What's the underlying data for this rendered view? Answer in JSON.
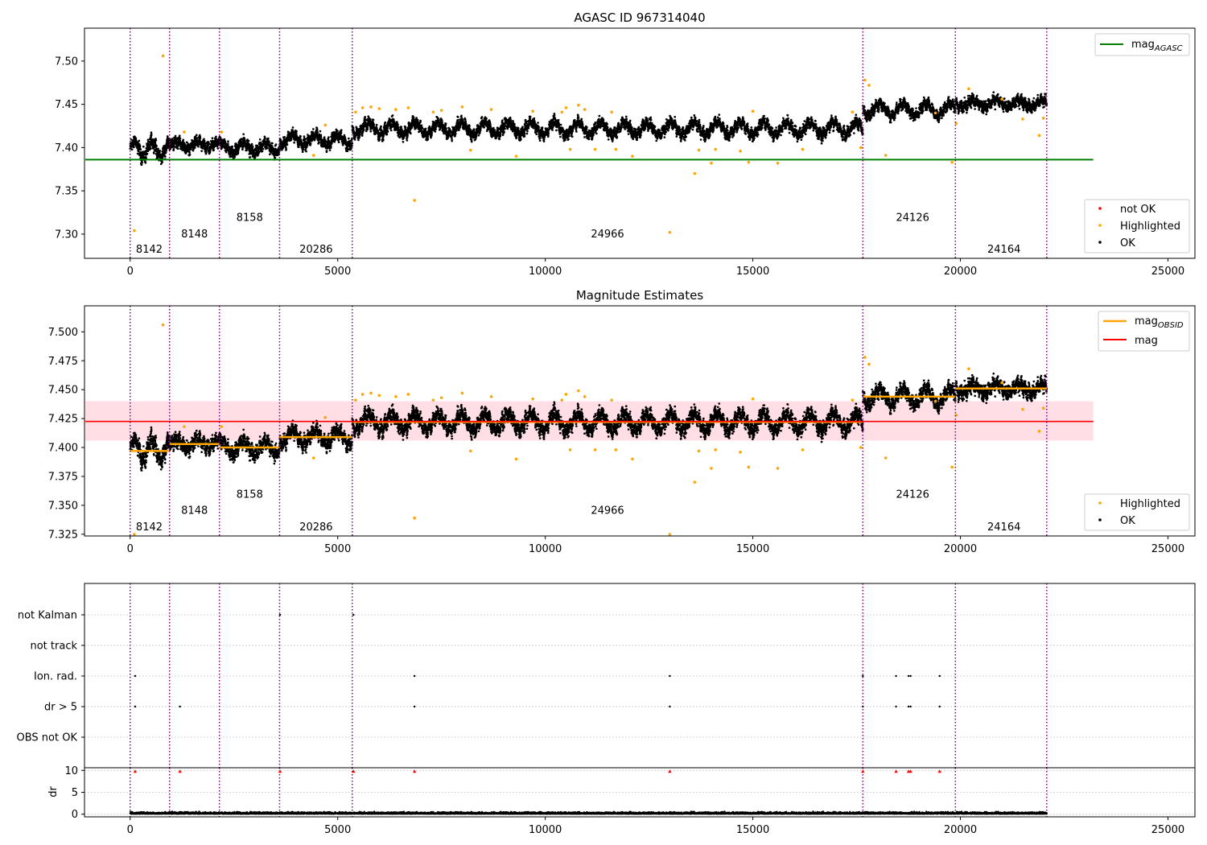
{
  "figure": {
    "x_ticks": [
      0,
      5000,
      10000,
      15000,
      20000,
      25000
    ],
    "x_range": [
      -1100,
      25650
    ],
    "obsid_boundaries": [
      0,
      950,
      2150,
      3600,
      5350,
      17650,
      19880,
      22080
    ],
    "colors": {
      "ok": "#000000",
      "highlighted": "#ffa500",
      "not_ok": "#ff0000",
      "boundary": "#800080",
      "agasc": "#008000",
      "mag": "#ff0000",
      "mag_band": "#ffc0cb",
      "mag_obsid": "#ffa500",
      "flag_grid": "#b0b0b0"
    }
  },
  "chart_data": [
    {
      "type": "scatter",
      "title": "AGASC ID 967314040",
      "y_range": [
        7.272,
        7.538
      ],
      "y_ticks": [
        "7.30",
        "7.35",
        "7.40",
        "7.45",
        "7.50"
      ],
      "obsid_labels": [
        {
          "text": "8142",
          "x": 460,
          "y": 7.283
        },
        {
          "text": "8148",
          "x": 1550,
          "y": 7.301
        },
        {
          "text": "8158",
          "x": 2880,
          "y": 7.32
        },
        {
          "text": "20286",
          "x": 4480,
          "y": 7.283
        },
        {
          "text": "24966",
          "x": 11500,
          "y": 7.301
        },
        {
          "text": "24126",
          "x": 18850,
          "y": 7.32
        },
        {
          "text": "24164",
          "x": 21050,
          "y": 7.283
        }
      ],
      "mag_agasc": 7.386,
      "line_end_x": 23200,
      "legend_top": [
        {
          "label": "mag",
          "sub": "AGASC"
        }
      ],
      "legend_bottom": [
        {
          "label": "not OK"
        },
        {
          "label": "Highlighted"
        },
        {
          "label": "OK"
        }
      ],
      "series": [
        {
          "name": "OK",
          "segments": [
            {
              "x0": 0,
              "x1": 950,
              "base": 7.398,
              "amp": 0.009,
              "period": 420,
              "noise": 0.006
            },
            {
              "x0": 950,
              "x1": 2150,
              "base": 7.403,
              "amp": 0.004,
              "period": 500,
              "noise": 0.005
            },
            {
              "x0": 2150,
              "x1": 3600,
              "base": 7.4,
              "amp": 0.006,
              "period": 520,
              "noise": 0.005
            },
            {
              "x0": 3600,
              "x1": 5350,
              "base": 7.409,
              "amp": 0.006,
              "period": 540,
              "noise": 0.005
            },
            {
              "x0": 5350,
              "x1": 17650,
              "base": 7.422,
              "amp": 0.007,
              "period": 560,
              "noise": 0.005
            },
            {
              "x0": 17650,
              "x1": 19880,
              "base": 7.444,
              "amp": 0.007,
              "period": 560,
              "noise": 0.005
            },
            {
              "x0": 19880,
              "x1": 22080,
              "base": 7.451,
              "amp": 0.004,
              "period": 560,
              "noise": 0.005
            }
          ]
        },
        {
          "name": "Highlighted",
          "points": [
            [
              100,
              7.304
            ],
            [
              790,
              7.506
            ],
            [
              1300,
              7.418
            ],
            [
              2200,
              7.418
            ],
            [
              4420,
              7.391
            ],
            [
              4700,
              7.426
            ],
            [
              5430,
              7.441
            ],
            [
              5600,
              7.446
            ],
            [
              5800,
              7.447
            ],
            [
              6000,
              7.445
            ],
            [
              6400,
              7.444
            ],
            [
              6850,
              7.339
            ],
            [
              6700,
              7.446
            ],
            [
              7300,
              7.441
            ],
            [
              7500,
              7.443
            ],
            [
              8000,
              7.447
            ],
            [
              8200,
              7.397
            ],
            [
              8700,
              7.444
            ],
            [
              9300,
              7.39
            ],
            [
              9700,
              7.442
            ],
            [
              10400,
              7.441
            ],
            [
              10500,
              7.446
            ],
            [
              10600,
              7.398
            ],
            [
              10800,
              7.449
            ],
            [
              10950,
              7.444
            ],
            [
              11200,
              7.398
            ],
            [
              11600,
              7.441
            ],
            [
              11700,
              7.398
            ],
            [
              12100,
              7.39
            ],
            [
              13000,
              7.302
            ],
            [
              13600,
              7.37
            ],
            [
              13700,
              7.397
            ],
            [
              14000,
              7.382
            ],
            [
              14100,
              7.398
            ],
            [
              14700,
              7.396
            ],
            [
              14900,
              7.383
            ],
            [
              15000,
              7.442
            ],
            [
              15600,
              7.382
            ],
            [
              16200,
              7.398
            ],
            [
              17400,
              7.441
            ],
            [
              17600,
              7.4
            ],
            [
              17700,
              7.478
            ],
            [
              17800,
              7.472
            ],
            [
              18200,
              7.391
            ],
            [
              19400,
              7.44
            ],
            [
              19800,
              7.383
            ],
            [
              19900,
              7.428
            ],
            [
              20200,
              7.468
            ],
            [
              21000,
              7.456
            ],
            [
              21500,
              7.433
            ],
            [
              21900,
              7.414
            ],
            [
              22000,
              7.434
            ]
          ]
        }
      ]
    },
    {
      "type": "scatter",
      "title": "Magnitude Estimates",
      "y_range": [
        7.3235,
        7.5225
      ],
      "y_ticks": [
        "7.325",
        "7.350",
        "7.375",
        "7.400",
        "7.425",
        "7.450",
        "7.475",
        "7.500"
      ],
      "obsid_labels": [
        {
          "text": "8142",
          "x": 460,
          "y": 7.332
        },
        {
          "text": "8148",
          "x": 1550,
          "y": 7.346
        },
        {
          "text": "8158",
          "x": 2880,
          "y": 7.36
        },
        {
          "text": "20286",
          "x": 4480,
          "y": 7.332
        },
        {
          "text": "24966",
          "x": 11500,
          "y": 7.346
        },
        {
          "text": "24126",
          "x": 18850,
          "y": 7.36
        },
        {
          "text": "24164",
          "x": 21050,
          "y": 7.332
        }
      ],
      "mag": 7.4225,
      "mag_band": [
        7.406,
        7.44
      ],
      "line_end_x": 23200,
      "mag_obsid": [
        {
          "x0": 0,
          "x1": 950,
          "y": 7.397
        },
        {
          "x0": 950,
          "x1": 2150,
          "y": 7.403
        },
        {
          "x0": 2150,
          "x1": 3600,
          "y": 7.4
        },
        {
          "x0": 3600,
          "x1": 5350,
          "y": 7.409
        },
        {
          "x0": 5350,
          "x1": 17650,
          "y": 7.422
        },
        {
          "x0": 17650,
          "x1": 19880,
          "y": 7.444
        },
        {
          "x0": 19880,
          "x1": 22080,
          "y": 7.451
        }
      ],
      "legend_top": [
        {
          "label": "mag",
          "sub": "OBSID"
        },
        {
          "label": "mag"
        }
      ],
      "legend_bottom": [
        {
          "label": "Highlighted"
        },
        {
          "label": "OK"
        }
      ]
    },
    {
      "type": "scatter",
      "categories": [
        "not Kalman",
        "not track",
        "Ion. rad.",
        "dr > 5",
        "OBS not OK"
      ],
      "flag_points": [
        {
          "category": "not Kalman",
          "x": [
            3610,
            5380
          ]
        },
        {
          "category": "Ion. rad.",
          "x": [
            120,
            6850,
            13000,
            17650,
            18450,
            18750,
            18800,
            19500
          ]
        },
        {
          "category": "dr > 5",
          "x": [
            120,
            1200,
            6850,
            13000,
            17650,
            18450,
            18750,
            18800,
            19500
          ]
        }
      ]
    },
    {
      "type": "scatter",
      "ylabel": "dr",
      "y_range": [
        -0.6,
        10.6
      ],
      "y_ticks": [
        "0",
        "5",
        "10"
      ],
      "clipped_at": 10,
      "clipped_x": [
        120,
        1200,
        3610,
        5380,
        6850,
        13000,
        17650,
        18450,
        18750,
        18800,
        19500
      ]
    }
  ]
}
